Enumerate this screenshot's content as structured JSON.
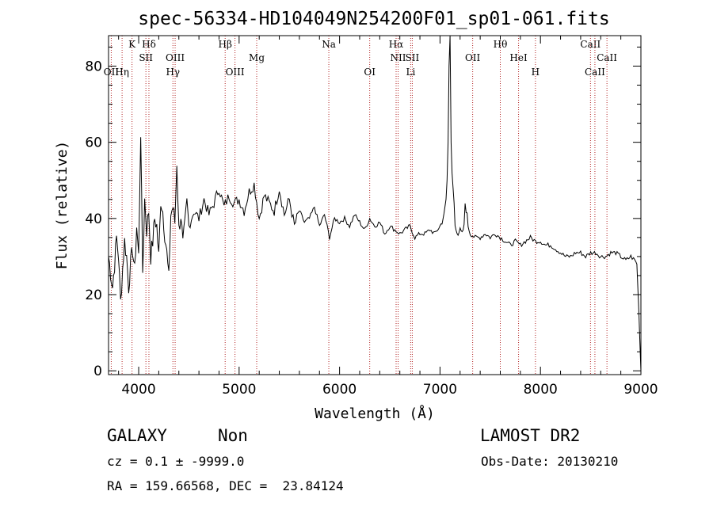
{
  "chart_data": {
    "type": "line",
    "title": "spec-56334-HD104049N254200F01_sp01-061.fits",
    "xlabel": "Wavelength (Å)",
    "ylabel": "Flux (relative)",
    "xlim": [
      3700,
      9000
    ],
    "ylim": [
      -1,
      88
    ],
    "xticks": [
      4000,
      5000,
      6000,
      7000,
      8000,
      9000
    ],
    "yticks": [
      0,
      20,
      40,
      60,
      80
    ],
    "grid": false,
    "series": [
      {
        "x": [
          3700,
          3720,
          3740,
          3760,
          3780,
          3800,
          3820,
          3840,
          3860,
          3880,
          3900,
          3920,
          3940,
          3960,
          3980,
          4000,
          4020,
          4040,
          4060,
          4080,
          4100,
          4120,
          4140,
          4160,
          4180,
          4200,
          4220,
          4240,
          4260,
          4280,
          4300,
          4320,
          4340,
          4360,
          4380,
          4400,
          4420,
          4440,
          4460,
          4480,
          4500,
          4550,
          4600,
          4650,
          4700,
          4750,
          4800,
          4850,
          4900,
          4950,
          5000,
          5050,
          5100,
          5150,
          5200,
          5250,
          5300,
          5350,
          5400,
          5450,
          5500,
          5550,
          5600,
          5650,
          5700,
          5750,
          5800,
          5850,
          5900,
          5950,
          6000,
          6050,
          6100,
          6150,
          6200,
          6250,
          6300,
          6350,
          6400,
          6450,
          6500,
          6550,
          6600,
          6650,
          6700,
          6750,
          6800,
          6850,
          6900,
          6950,
          7000,
          7020,
          7040,
          7060,
          7070,
          7080,
          7090,
          7100,
          7110,
          7120,
          7130,
          7140,
          7150,
          7160,
          7180,
          7200,
          7220,
          7240,
          7250,
          7260,
          7270,
          7280,
          7300,
          7350,
          7400,
          7450,
          7500,
          7550,
          7600,
          7650,
          7700,
          7750,
          7800,
          7850,
          7900,
          7950,
          8000,
          8050,
          8100,
          8150,
          8200,
          8250,
          8300,
          8350,
          8400,
          8450,
          8500,
          8550,
          8600,
          8650,
          8700,
          8750,
          8800,
          8850,
          8900,
          8940,
          8960,
          8980,
          9000
        ],
        "y": [
          30,
          26,
          22,
          28,
          35,
          30,
          18,
          27,
          34,
          30,
          22,
          28,
          32,
          26,
          38,
          30,
          63,
          26,
          45,
          37,
          42,
          30,
          34,
          40,
          38,
          30,
          45,
          42,
          36,
          31,
          24,
          41,
          43,
          39,
          55,
          37,
          41,
          33,
          38,
          44,
          38,
          42,
          40,
          45,
          41,
          44,
          48,
          43,
          46,
          44,
          45,
          42,
          47,
          49,
          40,
          46,
          44,
          42,
          48,
          41,
          45,
          38,
          42,
          39,
          40,
          43,
          38,
          41,
          35,
          40,
          39,
          40,
          38,
          41,
          39,
          37,
          40,
          38,
          39,
          36,
          38,
          37,
          36,
          37,
          38,
          35,
          36,
          36,
          37,
          36,
          38,
          39,
          41,
          45,
          50,
          60,
          80,
          88,
          60,
          52,
          48,
          44,
          38,
          37,
          36,
          37,
          36,
          38,
          44,
          42,
          41,
          38,
          36,
          35,
          35,
          36,
          35,
          36,
          35,
          34,
          33,
          34,
          33,
          34,
          35,
          34,
          34,
          33,
          33,
          32,
          31,
          30,
          30,
          31,
          31,
          30,
          31,
          31,
          30,
          30,
          31,
          31,
          30,
          29,
          30,
          29,
          28,
          15,
          0
        ]
      }
    ],
    "line_markers": [
      {
        "label": "OII",
        "wl": 3727,
        "row": 2
      },
      {
        "label": "Hη",
        "wl": 3835,
        "row": 2
      },
      {
        "label": "K",
        "wl": 3934,
        "row": 0
      },
      {
        "label": "Hδ",
        "wl": 4102,
        "row": 0
      },
      {
        "label": "SII",
        "wl": 4072,
        "row": 1
      },
      {
        "label": "OIII",
        "wl": 4363,
        "row": 1
      },
      {
        "label": "Hγ",
        "wl": 4341,
        "row": 2
      },
      {
        "label": "Hβ",
        "wl": 4861,
        "row": 0
      },
      {
        "label": "OIII",
        "wl": 4959,
        "row": 2
      },
      {
        "label": "Mg",
        "wl": 5175,
        "row": 1
      },
      {
        "label": "Na",
        "wl": 5893,
        "row": 0
      },
      {
        "label": "OI",
        "wl": 6300,
        "row": 2
      },
      {
        "label": "Hα",
        "wl": 6563,
        "row": 0
      },
      {
        "label": "NII",
        "wl": 6583,
        "row": 1
      },
      {
        "label": "SII",
        "wl": 6724,
        "row": 1
      },
      {
        "label": "Li",
        "wl": 6708,
        "row": 2
      },
      {
        "label": "OII",
        "wl": 7325,
        "row": 1
      },
      {
        "label": "Hθ",
        "wl": 7600,
        "row": 0
      },
      {
        "label": "HeI",
        "wl": 7782,
        "row": 1
      },
      {
        "label": "H",
        "wl": 7950,
        "row": 2
      },
      {
        "label": "CaII",
        "wl": 8498,
        "row": 0
      },
      {
        "label": "CaII",
        "wl": 8542,
        "row": 2
      },
      {
        "label": "CaII",
        "wl": 8662,
        "row": 1
      }
    ]
  },
  "info": {
    "object_class": "GALAXY",
    "subclass": "Non",
    "survey": "LAMOST DR2",
    "redshift": "cz = 0.1 ± -9999.0",
    "obs_date": "Obs-Date: 20130210",
    "coords": "RA = 159.66568, DEC =  23.84124"
  }
}
